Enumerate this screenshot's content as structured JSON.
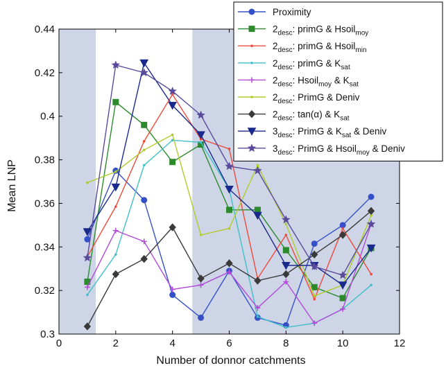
{
  "chart_data": {
    "type": "line",
    "xlabel": "Number of donnor catchments",
    "ylabel": "Mean LNP",
    "xlim": [
      0,
      12
    ],
    "ylim": [
      0.3,
      0.44
    ],
    "x_ticks": [
      "0",
      "2",
      "4",
      "6",
      "8",
      "10",
      "12"
    ],
    "y_ticks": [
      "0.3",
      "0.32",
      "0.34",
      "0.36",
      "0.38",
      "0.4",
      "0.42",
      "0.44"
    ],
    "grid": false,
    "legend_position": "top-right",
    "shaded_ranges": [
      [
        0,
        1.3
      ],
      [
        4.7,
        12
      ]
    ],
    "shade_color": "#cdd5e6",
    "x": [
      1,
      2,
      3,
      4,
      5,
      6,
      7,
      8,
      9,
      10,
      11
    ],
    "series": [
      {
        "name": "Proximity",
        "legend": [
          {
            "t": "Proximity"
          }
        ],
        "color": "#3450c8",
        "marker": "circle",
        "values": [
          0.3435,
          0.375,
          0.3615,
          0.318,
          0.3075,
          0.329,
          0.3075,
          0.304,
          0.3415,
          0.35,
          0.363
        ]
      },
      {
        "name": "2desc: primG & Hsoilmoy",
        "legend": [
          {
            "t": "2"
          },
          {
            "t": "desc",
            "sub": true
          },
          {
            "t": ": primG & Hsoil"
          },
          {
            "t": "moy",
            "sub": true
          }
        ],
        "color": "#2c8a2c",
        "marker": "square",
        "values": [
          0.324,
          0.4065,
          0.396,
          0.379,
          0.387,
          0.357,
          0.357,
          0.3385,
          0.3215,
          0.3165,
          0.3395
        ]
      },
      {
        "name": "2desc: primG & Hsoilmin",
        "legend": [
          {
            "t": "2"
          },
          {
            "t": "desc",
            "sub": true
          },
          {
            "t": ": primG & Hsoil"
          },
          {
            "t": "min",
            "sub": true
          }
        ],
        "color": "#f04a3a",
        "marker": "dot",
        "values": [
          0.3355,
          0.3585,
          0.3885,
          0.41,
          0.3895,
          0.385,
          0.3255,
          0.3455,
          0.316,
          0.3485,
          0.3275
        ]
      },
      {
        "name": "2desc: primG & Ksat",
        "legend": [
          {
            "t": "2"
          },
          {
            "t": "desc",
            "sub": true
          },
          {
            "t": ": primG & K"
          },
          {
            "t": "sat",
            "sub": true
          }
        ],
        "color": "#3fc0c8",
        "marker": "dot",
        "values": [
          0.318,
          0.3365,
          0.3775,
          0.389,
          0.388,
          0.3665,
          0.308,
          0.303,
          0.305,
          0.3115,
          0.3225
        ]
      },
      {
        "name": "2desc: Hsoilmoy & Ksat",
        "legend": [
          {
            "t": "2"
          },
          {
            "t": "desc",
            "sub": true
          },
          {
            "t": ": Hsoil"
          },
          {
            "t": "moy",
            "sub": true
          },
          {
            "t": " & K"
          },
          {
            "t": "sat",
            "sub": true
          }
        ],
        "color": "#b04ad8",
        "marker": "plus",
        "values": [
          0.3215,
          0.3475,
          0.3425,
          0.3205,
          0.3225,
          0.3285,
          0.312,
          0.324,
          0.305,
          0.3115,
          0.3505
        ]
      },
      {
        "name": "2desc: PrimG & Deniv",
        "legend": [
          {
            "t": "2"
          },
          {
            "t": "desc",
            "sub": true
          },
          {
            "t": ": PrimG & Deniv"
          }
        ],
        "color": "#b0cc2a",
        "marker": "dot",
        "values": [
          0.3695,
          0.3745,
          0.3845,
          0.3915,
          0.3455,
          0.3485,
          0.3775,
          0.3505,
          0.3175,
          0.3225,
          0.3545
        ]
      },
      {
        "name": "2desc: tan(α) & Ksat",
        "legend": [
          {
            "t": "2"
          },
          {
            "t": "desc",
            "sub": true
          },
          {
            "t": ": tan(α) & K"
          },
          {
            "t": "sat",
            "sub": true
          }
        ],
        "color": "#3a3a3a",
        "marker": "diamond",
        "values": [
          0.3035,
          0.3275,
          0.3345,
          0.349,
          0.3255,
          0.3325,
          0.3245,
          0.3275,
          0.3365,
          0.3455,
          0.3565
        ]
      },
      {
        "name": "3desc: PrimG & Ksat & Deniv",
        "legend": [
          {
            "t": "3"
          },
          {
            "t": "desc",
            "sub": true
          },
          {
            "t": ": PrimG & K"
          },
          {
            "t": "sat",
            "sub": true
          },
          {
            "t": " & Deniv"
          }
        ],
        "color": "#1a2a8c",
        "marker": "triangle-down",
        "values": [
          0.347,
          0.3675,
          0.4245,
          0.405,
          0.3915,
          0.3665,
          0.3545,
          0.3315,
          0.3315,
          0.3225,
          0.3395
        ]
      },
      {
        "name": "3desc: PrimG & Hsoilmoy & Deniv",
        "legend": [
          {
            "t": "3"
          },
          {
            "t": "desc",
            "sub": true
          },
          {
            "t": ": PrimG & Hsoil"
          },
          {
            "t": "moy",
            "sub": true
          },
          {
            "t": " & Deniv"
          }
        ],
        "color": "#5a4a9c",
        "marker": "star",
        "values": [
          0.335,
          0.4235,
          0.42,
          0.4115,
          0.4005,
          0.377,
          0.375,
          0.3525,
          0.331,
          0.327,
          0.3505
        ]
      }
    ]
  }
}
